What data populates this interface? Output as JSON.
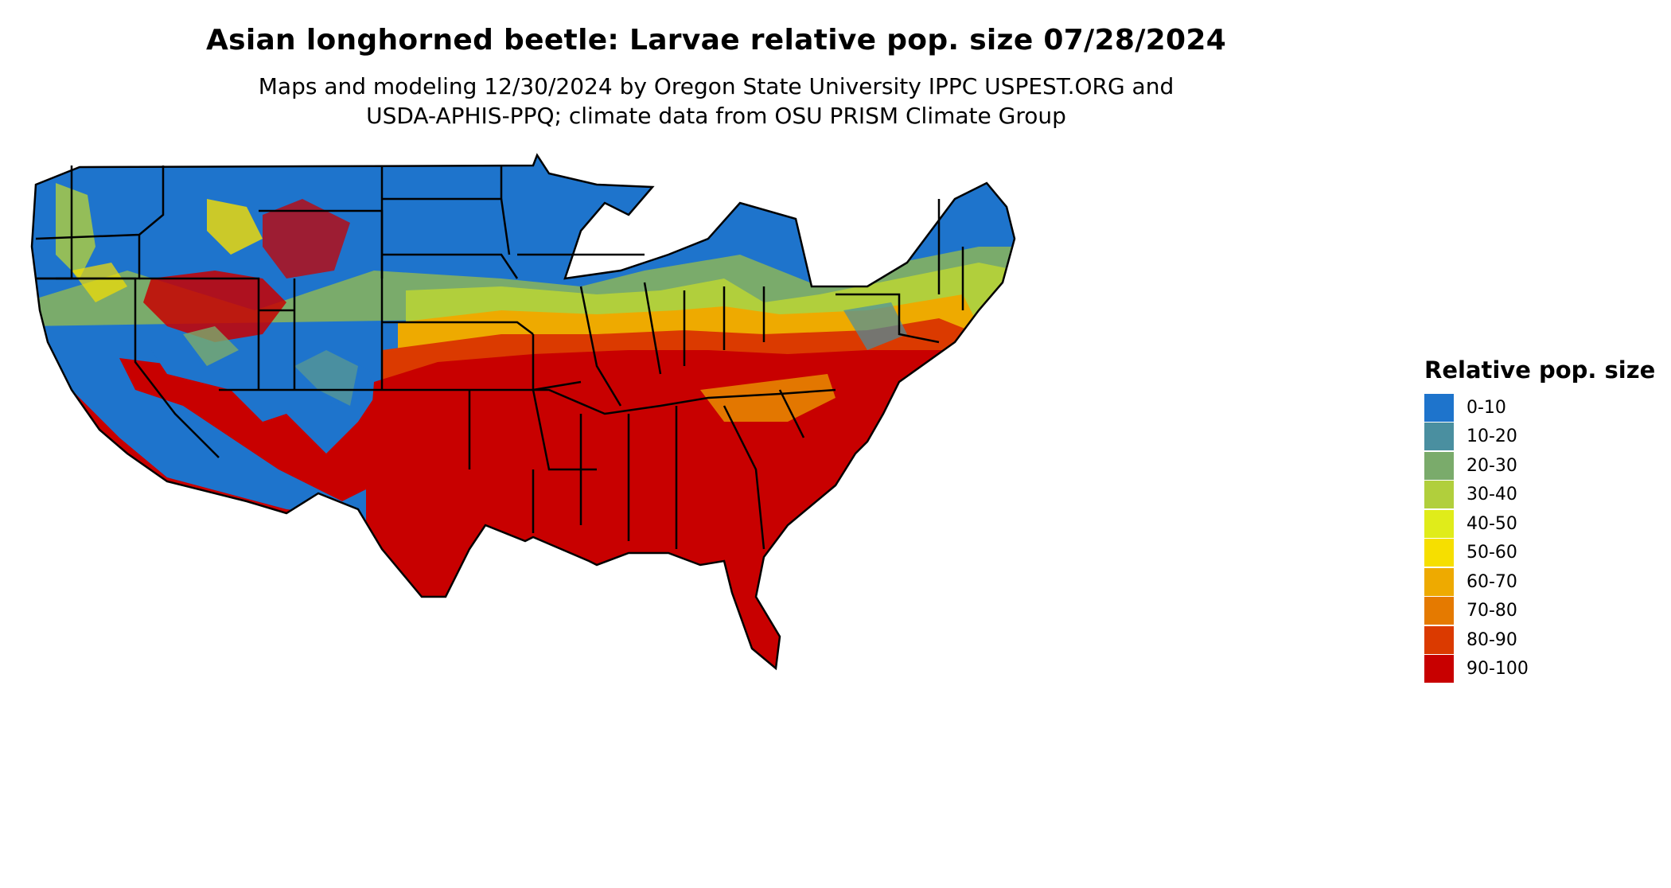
{
  "title": "Asian longhorned beetle: Larvae relative pop. size 07/28/2024",
  "subtitle_line1": "Maps and modeling 12/30/2024 by Oregon State University IPPC USPEST.ORG and",
  "subtitle_line2": "USDA-APHIS-PPQ; climate data from OSU PRISM Climate Group",
  "legend": {
    "title": "Relative pop. size",
    "items": [
      {
        "label": "0-10",
        "color": "#1e74cc"
      },
      {
        "label": "10-20",
        "color": "#4a8fa0"
      },
      {
        "label": "20-30",
        "color": "#7aab6b"
      },
      {
        "label": "30-40",
        "color": "#b1cf3c"
      },
      {
        "label": "40-50",
        "color": "#e0ec1a"
      },
      {
        "label": "50-60",
        "color": "#f6df00"
      },
      {
        "label": "60-70",
        "color": "#eeaa00"
      },
      {
        "label": "70-80",
        "color": "#e57a00"
      },
      {
        "label": "80-90",
        "color": "#db3a00"
      },
      {
        "label": "90-100",
        "color": "#c80000"
      }
    ]
  }
}
